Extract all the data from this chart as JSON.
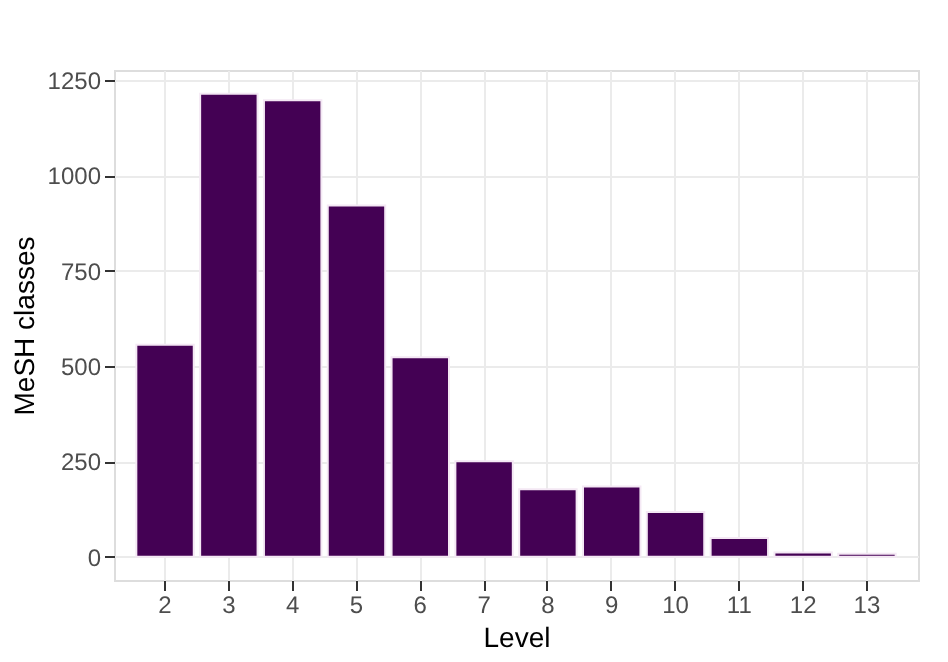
{
  "chart_data": {
    "type": "bar",
    "xlabel": "Level",
    "ylabel": "MeSH classes",
    "categories": [
      "2",
      "3",
      "4",
      "5",
      "6",
      "7",
      "8",
      "9",
      "10",
      "11",
      "12",
      "13"
    ],
    "values": [
      556,
      1214,
      1197,
      921,
      523,
      250,
      177,
      184,
      117,
      49,
      11,
      8
    ],
    "color": "#440154",
    "ylim": [
      -61,
      1276
    ],
    "yticks": [
      0,
      250,
      500,
      750,
      1000,
      1250
    ],
    "grid": true
  }
}
